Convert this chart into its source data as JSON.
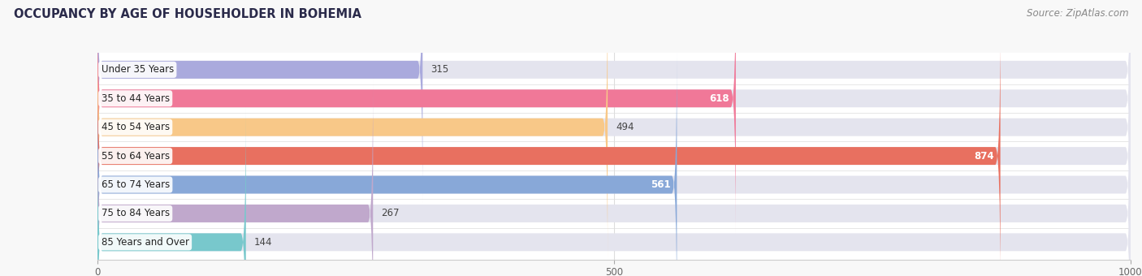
{
  "title": "OCCUPANCY BY AGE OF HOUSEHOLDER IN BOHEMIA",
  "source": "Source: ZipAtlas.com",
  "categories": [
    "Under 35 Years",
    "35 to 44 Years",
    "45 to 54 Years",
    "55 to 64 Years",
    "65 to 74 Years",
    "75 to 84 Years",
    "85 Years and Over"
  ],
  "values": [
    315,
    618,
    494,
    874,
    561,
    267,
    144
  ],
  "bar_colors": [
    "#aaaadd",
    "#f07898",
    "#f8c888",
    "#e87060",
    "#88a8d8",
    "#c0a8cc",
    "#78c8cc"
  ],
  "bar_background": "#e4e4ee",
  "xlim_left": 0,
  "xlim_right": 1000,
  "xticks": [
    0,
    500,
    1000
  ],
  "title_fontsize": 10.5,
  "source_fontsize": 8.5,
  "label_fontsize": 8.5,
  "value_fontsize": 8.5,
  "background_color": "#f8f8f8",
  "plot_bg_color": "#ffffff",
  "bar_height": 0.62,
  "fig_width": 14.06,
  "fig_height": 3.4,
  "grid_color": "#dddddd",
  "label_bg_color": "#ffffff"
}
